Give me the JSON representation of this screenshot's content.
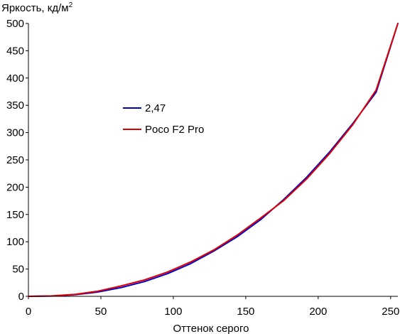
{
  "chart_data": {
    "type": "line",
    "title": "",
    "ylabel": "Яркость, кд/м",
    "ylabel_sup": "2",
    "xlabel": "Оттенок серого",
    "xlim": [
      0,
      255
    ],
    "ylim": [
      0,
      500
    ],
    "xticks": [
      0,
      50,
      100,
      150,
      200,
      250
    ],
    "yticks": [
      0,
      50,
      100,
      150,
      200,
      250,
      300,
      350,
      400,
      450,
      500
    ],
    "grid": false,
    "legend_position": "center-left",
    "series": [
      {
        "name": "2,47",
        "color": "#0000cc",
        "x": [
          0,
          16,
          32,
          48,
          64,
          80,
          96,
          112,
          128,
          144,
          160,
          176,
          192,
          208,
          224,
          240,
          255
        ],
        "y": [
          0,
          0.5,
          2.9,
          7.9,
          16,
          27,
          41.5,
          60,
          83,
          109,
          140,
          177,
          218,
          265,
          317,
          374,
          500
        ]
      },
      {
        "name": "Poco F2 Pro",
        "color": "#e00000",
        "x": [
          0,
          16,
          32,
          48,
          64,
          80,
          96,
          112,
          128,
          144,
          160,
          176,
          192,
          208,
          224,
          240,
          255
        ],
        "y": [
          0,
          0.8,
          3.5,
          9.5,
          19,
          30,
          44.5,
          63,
          85,
          112,
          143,
          175,
          215,
          262,
          315,
          378,
          500
        ]
      }
    ]
  }
}
